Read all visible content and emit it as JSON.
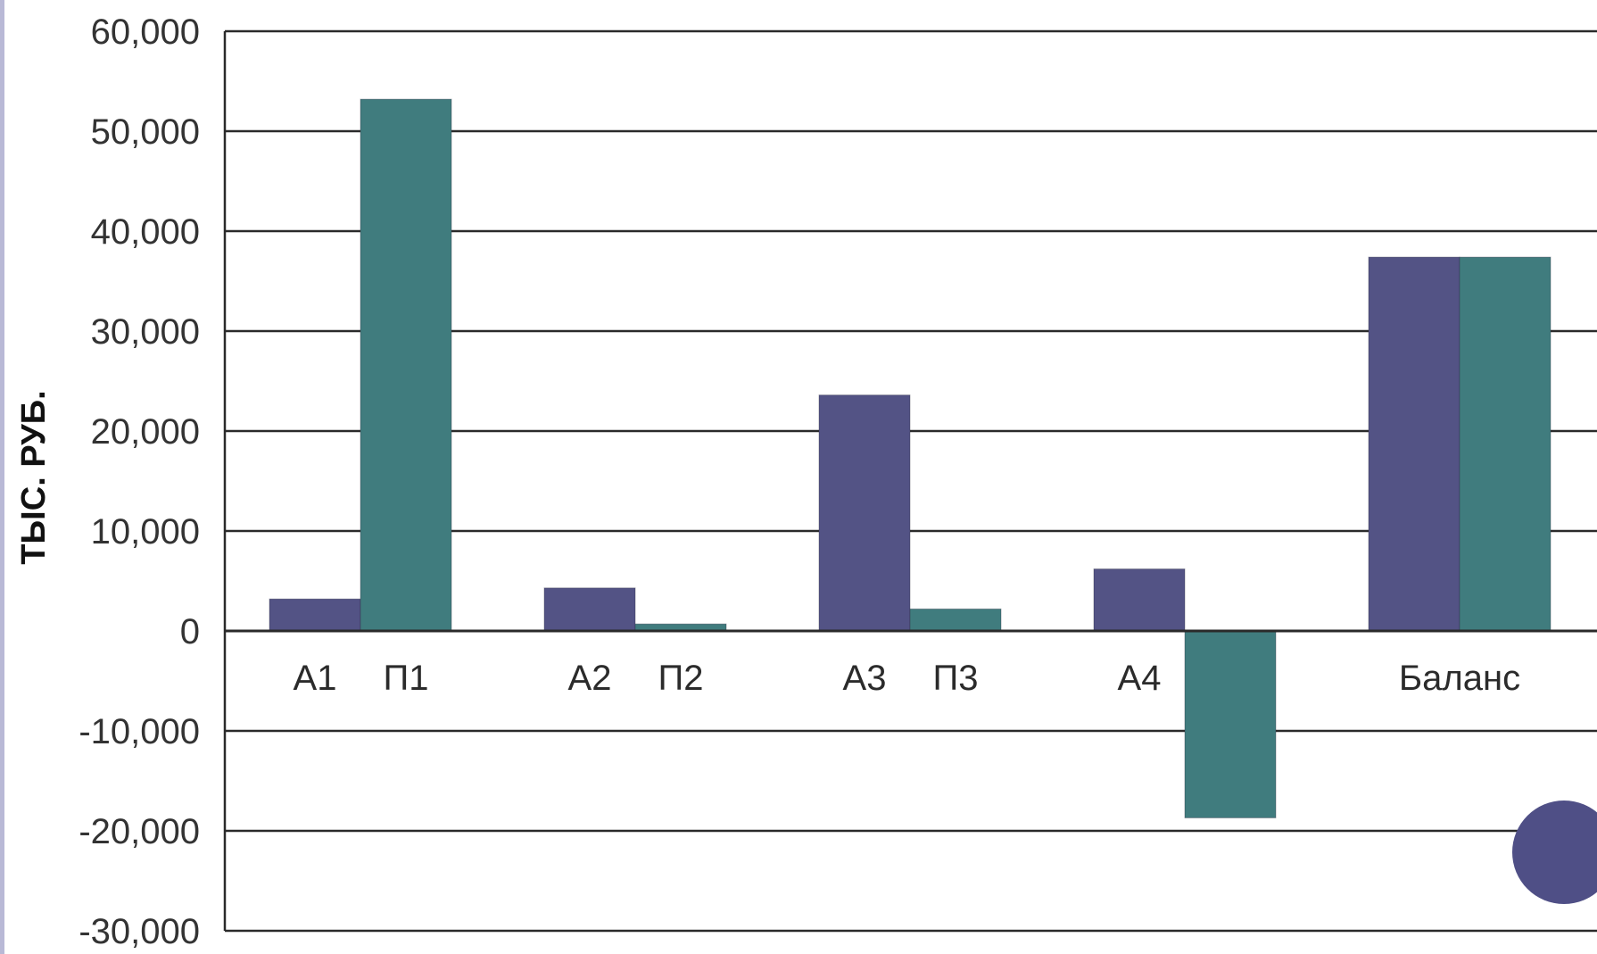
{
  "colors": {
    "assets": "#535385",
    "liabilities": "#407c7e",
    "grid": "#2a2a2a",
    "stripe": "#b9b9d6",
    "decor_circle": "#4f4f86"
  },
  "chart_data": {
    "type": "bar",
    "title": "",
    "xlabel": "",
    "ylabel": "ТЫС. РУБ.",
    "ylim": [
      -30000,
      60000
    ],
    "yticks": [
      60000,
      50000,
      40000,
      30000,
      20000,
      10000,
      0,
      -10000,
      -20000,
      -30000
    ],
    "ytick_labels": [
      "60,000",
      "50,000",
      "40,000",
      "30,000",
      "20,000",
      "10,000",
      "0",
      "-10,000",
      "-20,000",
      "-30,000"
    ],
    "grid": true,
    "legend": "none",
    "groups": [
      {
        "label": "",
        "bars": [
          {
            "series": "assets",
            "label": "А1",
            "value": 3200
          },
          {
            "series": "liabilities",
            "label": "П1",
            "value": 53200
          }
        ]
      },
      {
        "label": "",
        "bars": [
          {
            "series": "assets",
            "label": "А2",
            "value": 4300
          },
          {
            "series": "liabilities",
            "label": "П2",
            "value": 700
          }
        ]
      },
      {
        "label": "",
        "bars": [
          {
            "series": "assets",
            "label": "А3",
            "value": 23600
          },
          {
            "series": "liabilities",
            "label": "П3",
            "value": 2200
          }
        ]
      },
      {
        "label": "",
        "bars": [
          {
            "series": "assets",
            "label": "А4",
            "value": 6200
          },
          {
            "series": "liabilities",
            "label": "",
            "value": -18700
          }
        ]
      },
      {
        "label": "Баланс",
        "bars": [
          {
            "series": "assets",
            "label": "",
            "value": 37400
          },
          {
            "series": "liabilities",
            "label": "",
            "value": 37400
          }
        ]
      }
    ]
  }
}
